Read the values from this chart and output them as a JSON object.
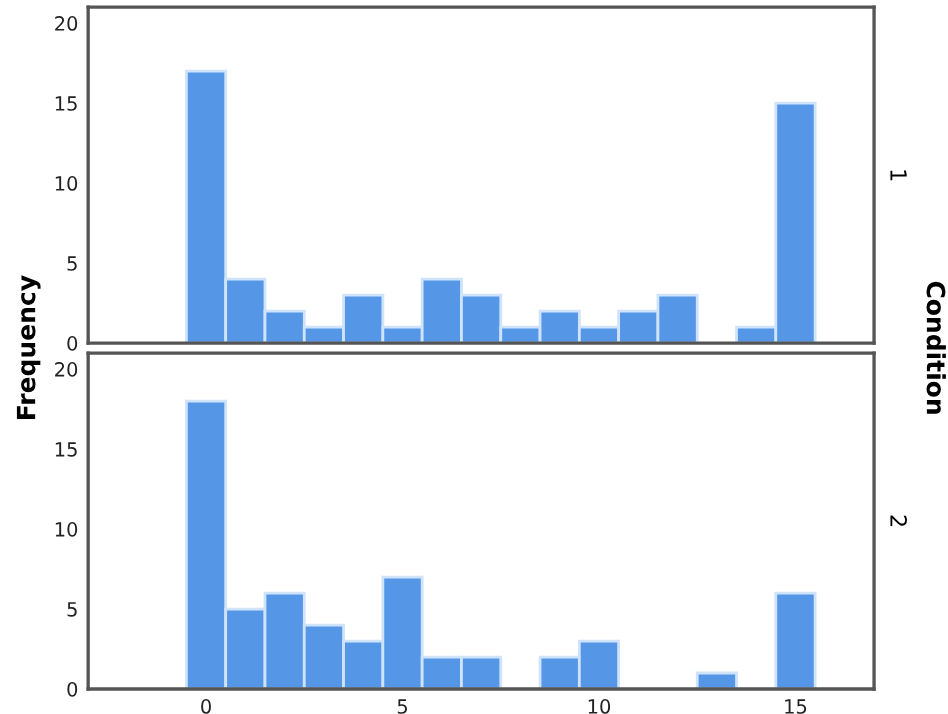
{
  "chart_data": [
    {
      "type": "histogram",
      "ylabel": "Frequency",
      "y2label": "Condition",
      "annotations": [
        "1"
      ],
      "bins": [
        -0.5,
        0.5,
        1.5,
        2.5,
        3.5,
        4.5,
        5.5,
        6.5,
        7.5,
        8.5,
        9.5,
        10.5,
        11.5,
        12.5,
        13.5,
        14.5,
        15.5
      ],
      "values": [
        17,
        4,
        2,
        1,
        3,
        1,
        4,
        3,
        1,
        2,
        1,
        2,
        3,
        0,
        1,
        15
      ],
      "color": "#5596e6",
      "xlim": [
        -3,
        17
      ],
      "xticks": [
        0,
        5,
        10,
        15
      ],
      "ylim": [
        0,
        21
      ],
      "yticks": [
        0,
        5,
        10,
        15,
        20
      ],
      "tick_labels": "y",
      "grid": false
    },
    {
      "type": "histogram",
      "annotations": [
        "2"
      ],
      "bins": [
        -0.5,
        0.5,
        1.5,
        2.5,
        3.5,
        4.5,
        5.5,
        6.5,
        7.5,
        8.5,
        9.5,
        10.5,
        11.5,
        12.5,
        13.5,
        14.5,
        15.5
      ],
      "values": [
        18,
        5,
        6,
        4,
        3,
        7,
        2,
        2,
        0,
        2,
        3,
        0,
        0,
        1,
        0,
        6
      ],
      "color": "#5596e6",
      "xlim": [
        -3,
        17
      ],
      "xticks": [
        0,
        5,
        10,
        15
      ],
      "ylim": [
        0,
        21
      ],
      "yticks": [
        0,
        5,
        10,
        15,
        20
      ],
      "grid": false
    }
  ]
}
